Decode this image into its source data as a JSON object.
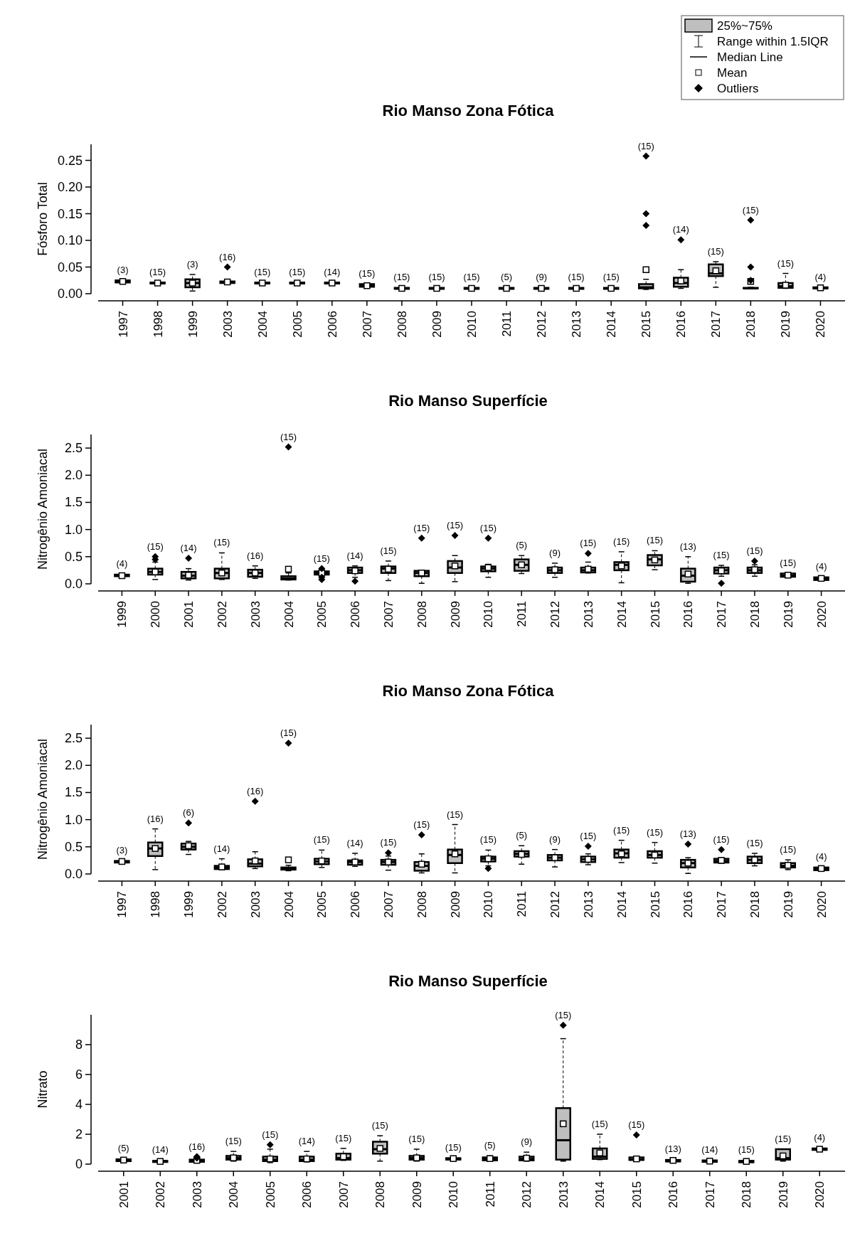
{
  "chart_data": [
    {
      "type": "other",
      "annotations": [
        "25%~75%",
        "Range within 1.5IQR",
        "Median Line",
        "Mean",
        "Outliers"
      ]
    },
    {
      "type": "box",
      "title": "Rio Manso Zona Fótica",
      "ylabel": "Fósforo Total",
      "categories": [
        "1997",
        "1998",
        "1999",
        "2003",
        "2004",
        "2005",
        "2006",
        "2007",
        "2008",
        "2009",
        "2010",
        "2011",
        "2012",
        "2013",
        "2014",
        "2015",
        "2016",
        "2017",
        "2018",
        "2019",
        "2020"
      ],
      "ylim": [
        0,
        0.28
      ],
      "yticks": [
        {
          "value": 0,
          "label": "0.00"
        },
        {
          "value": 0.05,
          "label": "0.05"
        },
        {
          "value": 0.1,
          "label": "0.10"
        },
        {
          "value": 0.15,
          "label": "0.15"
        },
        {
          "value": 0.2,
          "label": "0.20"
        },
        {
          "value": 0.25,
          "label": "0.25"
        }
      ],
      "series": [
        {
          "color": "#bfbfbf",
          "boxes": [
            {
              "low": 0.021,
              "q1": 0.021,
              "median": 0.023,
              "q3": 0.025,
              "high": 0.025,
              "mean": 0.023
            },
            {
              "low": 0.018,
              "q1": 0.019,
              "median": 0.02,
              "q3": 0.021,
              "high": 0.022,
              "mean": 0.02
            },
            {
              "low": 0.005,
              "q1": 0.012,
              "median": 0.02,
              "q3": 0.027,
              "high": 0.036,
              "mean": 0.02
            },
            {
              "low": 0.019,
              "q1": 0.02,
              "median": 0.021,
              "q3": 0.023,
              "high": 0.024,
              "mean": 0.022,
              "outliers": [
                0.05
              ]
            },
            {
              "low": 0.018,
              "q1": 0.019,
              "median": 0.02,
              "q3": 0.021,
              "high": 0.022,
              "mean": 0.02
            },
            {
              "low": 0.018,
              "q1": 0.019,
              "median": 0.02,
              "q3": 0.021,
              "high": 0.022,
              "mean": 0.02
            },
            {
              "low": 0.018,
              "q1": 0.019,
              "median": 0.02,
              "q3": 0.021,
              "high": 0.022,
              "mean": 0.02
            },
            {
              "low": 0.012,
              "q1": 0.013,
              "median": 0.015,
              "q3": 0.018,
              "high": 0.019,
              "mean": 0.015
            },
            {
              "low": 0.008,
              "q1": 0.009,
              "median": 0.01,
              "q3": 0.011,
              "high": 0.012,
              "mean": 0.01
            },
            {
              "low": 0.008,
              "q1": 0.009,
              "median": 0.01,
              "q3": 0.011,
              "high": 0.012,
              "mean": 0.01
            },
            {
              "low": 0.008,
              "q1": 0.009,
              "median": 0.01,
              "q3": 0.011,
              "high": 0.012,
              "mean": 0.01
            },
            {
              "low": 0.008,
              "q1": 0.009,
              "median": 0.01,
              "q3": 0.011,
              "high": 0.012,
              "mean": 0.01
            },
            {
              "low": 0.008,
              "q1": 0.009,
              "median": 0.01,
              "q3": 0.011,
              "high": 0.012,
              "mean": 0.01
            },
            {
              "low": 0.008,
              "q1": 0.009,
              "median": 0.01,
              "q3": 0.011,
              "high": 0.012,
              "mean": 0.01
            },
            {
              "low": 0.008,
              "q1": 0.009,
              "median": 0.01,
              "q3": 0.011,
              "high": 0.012,
              "mean": 0.01
            },
            {
              "low": 0.008,
              "q1": 0.01,
              "median": 0.012,
              "q3": 0.018,
              "high": 0.027,
              "mean": 0.045,
              "outliers": [
                0.258,
                0.15,
                0.128
              ]
            },
            {
              "low": 0.01,
              "q1": 0.013,
              "median": 0.02,
              "q3": 0.03,
              "high": 0.045,
              "mean": 0.024,
              "outliers": [
                0.101
              ]
            },
            {
              "low": 0.012,
              "q1": 0.033,
              "median": 0.038,
              "q3": 0.055,
              "high": 0.06,
              "mean": 0.043
            },
            {
              "low": 0.009,
              "q1": 0.01,
              "median": 0.01,
              "q3": 0.011,
              "high": 0.012,
              "mean": 0.023,
              "outliers": [
                0.138,
                0.05,
                0.025
              ]
            },
            {
              "low": 0.01,
              "q1": 0.011,
              "median": 0.014,
              "q3": 0.02,
              "high": 0.038,
              "mean": 0.016
            },
            {
              "low": 0.009,
              "q1": 0.01,
              "median": 0.01,
              "q3": 0.012,
              "high": 0.012,
              "mean": 0.011
            }
          ]
        }
      ],
      "annotations": [
        "(3)",
        "(15)",
        "(3)",
        "(16)",
        "(15)",
        "(15)",
        "(14)",
        "(15)",
        "(15)",
        "(15)",
        "(15)",
        "(5)",
        "(9)",
        "(15)",
        "(15)",
        "(15)",
        "(14)",
        "(15)",
        "(15)",
        "(15)",
        "(4)"
      ]
    },
    {
      "type": "box",
      "title": "Rio Manso Superfície",
      "ylabel": "Nitrogênio Amoniacal",
      "categories": [
        "1999",
        "2000",
        "2001",
        "2002",
        "2003",
        "2004",
        "2005",
        "2006",
        "2007",
        "2008",
        "2009",
        "2010",
        "2011",
        "2012",
        "2013",
        "2014",
        "2015",
        "2016",
        "2017",
        "2018",
        "2019",
        "2020"
      ],
      "ylim": [
        0,
        2.75
      ],
      "yticks": [
        {
          "value": 0,
          "label": "0.0"
        },
        0.5,
        {
          "value": 1,
          "label": "1.0"
        },
        1.5,
        {
          "value": 2,
          "label": "2.0"
        },
        2.5
      ],
      "series": [
        {
          "color": "#bfbfbf",
          "boxes": [
            {
              "low": 0.13,
              "q1": 0.14,
              "median": 0.15,
              "q3": 0.17,
              "high": 0.18,
              "mean": 0.15
            },
            {
              "low": 0.08,
              "q1": 0.17,
              "median": 0.22,
              "q3": 0.28,
              "high": 0.4,
              "mean": 0.22,
              "outliers": [
                0.45,
                0.5
              ]
            },
            {
              "low": 0.07,
              "q1": 0.1,
              "median": 0.15,
              "q3": 0.22,
              "high": 0.28,
              "mean": 0.16,
              "outliers": [
                0.47
              ]
            },
            {
              "low": 0.08,
              "q1": 0.1,
              "median": 0.2,
              "q3": 0.28,
              "high": 0.57,
              "mean": 0.2
            },
            {
              "low": 0.1,
              "q1": 0.13,
              "median": 0.2,
              "q3": 0.26,
              "high": 0.33,
              "mean": 0.2
            },
            {
              "low": 0.07,
              "q1": 0.08,
              "median": 0.1,
              "q3": 0.14,
              "high": 0.2,
              "mean": 0.27,
              "outliers": [
                2.52
              ]
            },
            {
              "low": 0.15,
              "q1": 0.17,
              "median": 0.2,
              "q3": 0.23,
              "high": 0.27,
              "mean": 0.2,
              "outliers": [
                0.08,
                0.12,
                0.28
              ]
            },
            {
              "low": 0.12,
              "q1": 0.2,
              "median": 0.25,
              "q3": 0.3,
              "high": 0.33,
              "mean": 0.24,
              "outliers": [
                0.05
              ]
            },
            {
              "low": 0.06,
              "q1": 0.2,
              "median": 0.28,
              "q3": 0.32,
              "high": 0.42,
              "mean": 0.27
            },
            {
              "low": 0.01,
              "q1": 0.14,
              "median": 0.2,
              "q3": 0.24,
              "high": 0.25,
              "mean": 0.2,
              "outliers": [
                0.84
              ]
            },
            {
              "low": 0.04,
              "q1": 0.2,
              "median": 0.3,
              "q3": 0.42,
              "high": 0.52,
              "mean": 0.33,
              "outliers": [
                0.89
              ]
            },
            {
              "low": 0.12,
              "q1": 0.23,
              "median": 0.28,
              "q3": 0.32,
              "high": 0.36,
              "mean": 0.3,
              "outliers": [
                0.84
              ]
            },
            {
              "low": 0.19,
              "q1": 0.24,
              "median": 0.35,
              "q3": 0.45,
              "high": 0.52,
              "mean": 0.35
            },
            {
              "low": 0.12,
              "q1": 0.2,
              "median": 0.25,
              "q3": 0.3,
              "high": 0.38,
              "mean": 0.26
            },
            {
              "low": 0.2,
              "q1": 0.21,
              "median": 0.25,
              "q3": 0.3,
              "high": 0.4,
              "mean": 0.27,
              "outliers": [
                0.56
              ]
            },
            {
              "low": 0.02,
              "q1": 0.25,
              "median": 0.35,
              "q3": 0.4,
              "high": 0.59,
              "mean": 0.33
            },
            {
              "low": 0.26,
              "q1": 0.34,
              "median": 0.45,
              "q3": 0.53,
              "high": 0.61,
              "mean": 0.44
            },
            {
              "low": 0.01,
              "q1": 0.04,
              "median": 0.15,
              "q3": 0.28,
              "high": 0.5,
              "mean": 0.18
            },
            {
              "low": 0.14,
              "q1": 0.19,
              "median": 0.25,
              "q3": 0.3,
              "high": 0.34,
              "mean": 0.24,
              "outliers": [
                0.01
              ]
            },
            {
              "low": 0.14,
              "q1": 0.2,
              "median": 0.25,
              "q3": 0.3,
              "high": 0.35,
              "mean": 0.26,
              "outliers": [
                0.42
              ]
            },
            {
              "low": 0.12,
              "q1": 0.13,
              "median": 0.15,
              "q3": 0.19,
              "high": 0.2,
              "mean": 0.16
            },
            {
              "low": 0.06,
              "q1": 0.07,
              "median": 0.1,
              "q3": 0.12,
              "high": 0.13,
              "mean": 0.1
            }
          ]
        }
      ],
      "annotations": [
        "(4)",
        "(15)",
        "(14)",
        "(15)",
        "(16)",
        "(15)",
        "(15)",
        "(14)",
        "(15)",
        "(15)",
        "(15)",
        "(15)",
        "(5)",
        "(9)",
        "(15)",
        "(15)",
        "(15)",
        "(13)",
        "(15)",
        "(15)",
        "(15)",
        "(4)"
      ]
    },
    {
      "type": "box",
      "title": "Rio Manso Zona Fótica",
      "ylabel": "Nitrogênio Amoniacal",
      "categories": [
        "1997",
        "1998",
        "1999",
        "2002",
        "2003",
        "2004",
        "2005",
        "2006",
        "2007",
        "2008",
        "2009",
        "2010",
        "2011",
        "2012",
        "2013",
        "2014",
        "2015",
        "2016",
        "2017",
        "2018",
        "2019",
        "2020"
      ],
      "ylim": [
        0,
        2.75
      ],
      "yticks": [
        {
          "value": 0,
          "label": "0.0"
        },
        0.5,
        {
          "value": 1,
          "label": "1.0"
        },
        1.5,
        {
          "value": 2,
          "label": "2.0"
        },
        2.5
      ],
      "series": [
        {
          "color": "#bfbfbf",
          "boxes": [
            {
              "low": 0.2,
              "q1": 0.21,
              "median": 0.23,
              "q3": 0.24,
              "high": 0.25,
              "mean": 0.23
            },
            {
              "low": 0.08,
              "q1": 0.33,
              "median": 0.47,
              "q3": 0.58,
              "high": 0.83,
              "mean": 0.47
            },
            {
              "low": 0.36,
              "q1": 0.45,
              "median": 0.5,
              "q3": 0.56,
              "high": 0.6,
              "mean": 0.52,
              "outliers": [
                0.94
              ]
            },
            {
              "low": 0.08,
              "q1": 0.09,
              "median": 0.12,
              "q3": 0.15,
              "high": 0.28,
              "mean": 0.13
            },
            {
              "low": 0.1,
              "q1": 0.14,
              "median": 0.19,
              "q3": 0.27,
              "high": 0.41,
              "mean": 0.24,
              "outliers": [
                1.34
              ]
            },
            {
              "low": 0.06,
              "q1": 0.08,
              "median": 0.1,
              "q3": 0.12,
              "high": 0.16,
              "mean": 0.26,
              "outliers": [
                2.41
              ]
            },
            {
              "low": 0.12,
              "q1": 0.18,
              "median": 0.23,
              "q3": 0.28,
              "high": 0.44,
              "mean": 0.24
            },
            {
              "low": 0.14,
              "q1": 0.17,
              "median": 0.22,
              "q3": 0.25,
              "high": 0.38,
              "mean": 0.22
            },
            {
              "low": 0.07,
              "q1": 0.17,
              "median": 0.22,
              "q3": 0.26,
              "high": 0.33,
              "mean": 0.22,
              "outliers": [
                0.39
              ]
            },
            {
              "low": 0.02,
              "q1": 0.06,
              "median": 0.15,
              "q3": 0.22,
              "high": 0.37,
              "mean": 0.18,
              "outliers": [
                0.72
              ]
            },
            {
              "low": 0.02,
              "q1": 0.2,
              "median": 0.35,
              "q3": 0.45,
              "high": 0.91,
              "mean": 0.37
            },
            {
              "low": 0.15,
              "q1": 0.23,
              "median": 0.28,
              "q3": 0.32,
              "high": 0.44,
              "mean": 0.28,
              "outliers": [
                0.1
              ]
            },
            {
              "low": 0.18,
              "q1": 0.32,
              "median": 0.37,
              "q3": 0.42,
              "high": 0.52,
              "mean": 0.36
            },
            {
              "low": 0.13,
              "q1": 0.25,
              "median": 0.3,
              "q3": 0.35,
              "high": 0.45,
              "mean": 0.3
            },
            {
              "low": 0.17,
              "q1": 0.22,
              "median": 0.27,
              "q3": 0.32,
              "high": 0.37,
              "mean": 0.27,
              "outliers": [
                0.51
              ]
            },
            {
              "low": 0.21,
              "q1": 0.3,
              "median": 0.38,
              "q3": 0.45,
              "high": 0.62,
              "mean": 0.37
            },
            {
              "low": 0.2,
              "q1": 0.3,
              "median": 0.35,
              "q3": 0.42,
              "high": 0.58,
              "mean": 0.35
            },
            {
              "low": 0.01,
              "q1": 0.12,
              "median": 0.2,
              "q3": 0.26,
              "high": 0.3,
              "mean": 0.2,
              "outliers": [
                0.55
              ]
            },
            {
              "low": 0.2,
              "q1": 0.21,
              "median": 0.24,
              "q3": 0.28,
              "high": 0.3,
              "mean": 0.25,
              "outliers": [
                0.45
              ]
            },
            {
              "low": 0.15,
              "q1": 0.2,
              "median": 0.26,
              "q3": 0.32,
              "high": 0.38,
              "mean": 0.26
            },
            {
              "low": 0.08,
              "q1": 0.12,
              "median": 0.15,
              "q3": 0.2,
              "high": 0.26,
              "mean": 0.16
            },
            {
              "low": 0.05,
              "q1": 0.07,
              "median": 0.1,
              "q3": 0.12,
              "high": 0.13,
              "mean": 0.1
            }
          ]
        }
      ],
      "annotations": [
        "(3)",
        "(16)",
        "(6)",
        "(14)",
        "(16)",
        "(15)",
        "(15)",
        "(14)",
        "(15)",
        "(15)",
        "(15)",
        "(15)",
        "(5)",
        "(9)",
        "(15)",
        "(15)",
        "(15)",
        "(13)",
        "(15)",
        "(15)",
        "(15)",
        "(4)"
      ]
    },
    {
      "type": "box",
      "title": "Rio Manso Superfície",
      "ylabel": "Nitrato",
      "categories": [
        "2001",
        "2002",
        "2003",
        "2004",
        "2005",
        "2006",
        "2007",
        "2008",
        "2009",
        "2010",
        "2011",
        "2012",
        "2013",
        "2014",
        "2015",
        "2016",
        "2017",
        "2018",
        "2019",
        "2020"
      ],
      "ylim": [
        0,
        10
      ],
      "yticks": [
        0,
        2,
        4,
        6,
        8
      ],
      "series": [
        {
          "color": "#bfbfbf",
          "boxes": [
            {
              "low": 0.15,
              "q1": 0.2,
              "median": 0.25,
              "q3": 0.32,
              "high": 0.38,
              "mean": 0.27
            },
            {
              "low": 0.1,
              "q1": 0.14,
              "median": 0.18,
              "q3": 0.22,
              "high": 0.28,
              "mean": 0.18
            },
            {
              "low": 0.1,
              "q1": 0.15,
              "median": 0.2,
              "q3": 0.3,
              "high": 0.45,
              "mean": 0.25,
              "outliers": [
                0.4,
                0.5
              ]
            },
            {
              "low": 0.2,
              "q1": 0.3,
              "median": 0.4,
              "q3": 0.55,
              "high": 0.85,
              "mean": 0.42
            },
            {
              "low": 0.1,
              "q1": 0.2,
              "median": 0.3,
              "q3": 0.5,
              "high": 1.0,
              "mean": 0.35,
              "outliers": [
                1.3
              ]
            },
            {
              "low": 0.15,
              "q1": 0.2,
              "median": 0.3,
              "q3": 0.5,
              "high": 0.85,
              "mean": 0.35
            },
            {
              "low": 0.25,
              "q1": 0.3,
              "median": 0.4,
              "q3": 0.7,
              "high": 1.05,
              "mean": 0.5
            },
            {
              "low": 0.2,
              "q1": 0.7,
              "median": 1.0,
              "q3": 1.5,
              "high": 1.9,
              "mean": 1.05
            },
            {
              "low": 0.2,
              "q1": 0.3,
              "median": 0.4,
              "q3": 0.55,
              "high": 1.0,
              "mean": 0.42
            },
            {
              "low": 0.25,
              "q1": 0.3,
              "median": 0.35,
              "q3": 0.4,
              "high": 0.45,
              "mean": 0.37
            },
            {
              "low": 0.2,
              "q1": 0.25,
              "median": 0.35,
              "q3": 0.45,
              "high": 0.55,
              "mean": 0.37
            },
            {
              "low": 0.2,
              "q1": 0.25,
              "median": 0.35,
              "q3": 0.5,
              "high": 0.8,
              "mean": 0.4
            },
            {
              "low": 0.2,
              "q1": 0.3,
              "median": 1.6,
              "q3": 3.75,
              "high": 8.4,
              "mean": 2.7,
              "outliers": [
                9.3
              ]
            },
            {
              "low": 0.3,
              "q1": 0.35,
              "median": 0.5,
              "q3": 1.05,
              "high": 2.0,
              "mean": 0.75
            },
            {
              "low": 0.25,
              "q1": 0.28,
              "median": 0.3,
              "q3": 0.45,
              "high": 0.5,
              "mean": 0.35,
              "outliers": [
                1.95
              ]
            },
            {
              "low": 0.15,
              "q1": 0.18,
              "median": 0.2,
              "q3": 0.28,
              "high": 0.35,
              "mean": 0.25
            },
            {
              "low": 0.1,
              "q1": 0.15,
              "median": 0.2,
              "q3": 0.25,
              "high": 0.3,
              "mean": 0.2
            },
            {
              "low": 0.1,
              "q1": 0.12,
              "median": 0.18,
              "q3": 0.22,
              "high": 0.28,
              "mean": 0.18
            },
            {
              "low": 0.2,
              "q1": 0.3,
              "median": 0.4,
              "q3": 1.0,
              "high": 1.0,
              "mean": 0.55
            },
            {
              "low": 0.9,
              "q1": 0.95,
              "median": 1.0,
              "q3": 1.05,
              "high": 1.1,
              "mean": 1.0
            }
          ]
        }
      ],
      "annotations": [
        "(5)",
        "(14)",
        "(16)",
        "(15)",
        "(15)",
        "(14)",
        "(15)",
        "(15)",
        "(15)",
        "(15)",
        "(5)",
        "(9)",
        "(15)",
        "(15)",
        "(15)",
        "(13)",
        "(14)",
        "(15)",
        "(15)",
        "(4)"
      ]
    }
  ]
}
